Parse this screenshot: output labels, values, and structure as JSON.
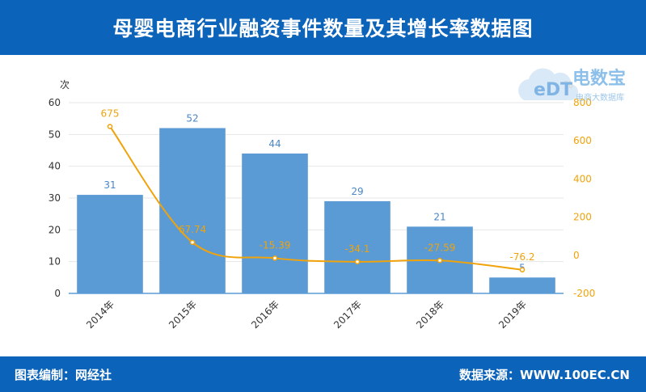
{
  "header": {
    "title": "母婴电商行业融资事件数量及其增长率数据图"
  },
  "footer": {
    "left": "图表编制：网经社",
    "right": "数据来源：WWW.100EC.CN"
  },
  "watermark": {
    "name": "电数宝",
    "subtitle": "电商大数据库",
    "badge": "eDT"
  },
  "colors": {
    "header_bg": "#0b63ba",
    "bar": "#5b9bd5",
    "line": "#f0a30a",
    "bar_label": "#4a86c8",
    "axis_text": "#333333",
    "right_axis_text": "#f0a30a"
  },
  "chart_data": {
    "type": "bar",
    "categories": [
      "2014年",
      "2015年",
      "2016年",
      "2017年",
      "2018年",
      "2019年"
    ],
    "series": [
      {
        "type": "bar",
        "values": [
          31,
          52,
          44,
          29,
          21,
          5
        ],
        "axis": "left"
      },
      {
        "type": "line",
        "values": [
          675,
          67.74,
          -15.39,
          -34.1,
          -27.59,
          -76.2
        ],
        "axis": "right"
      }
    ],
    "bar_labels": [
      "31",
      "52",
      "44",
      "29",
      "21",
      "5"
    ],
    "line_labels": [
      "675",
      "67.74",
      "-15.39",
      "-34.1",
      "-27.59",
      "-76.2"
    ],
    "left_axis": {
      "unit": "次",
      "ylim": [
        0,
        60
      ],
      "ticks": [
        0,
        10,
        20,
        30,
        40,
        50,
        60
      ]
    },
    "right_axis": {
      "unit": "%",
      "ylim": [
        -200,
        800
      ],
      "ticks": [
        -200,
        0,
        200,
        400,
        600,
        800
      ]
    },
    "grid": true
  }
}
